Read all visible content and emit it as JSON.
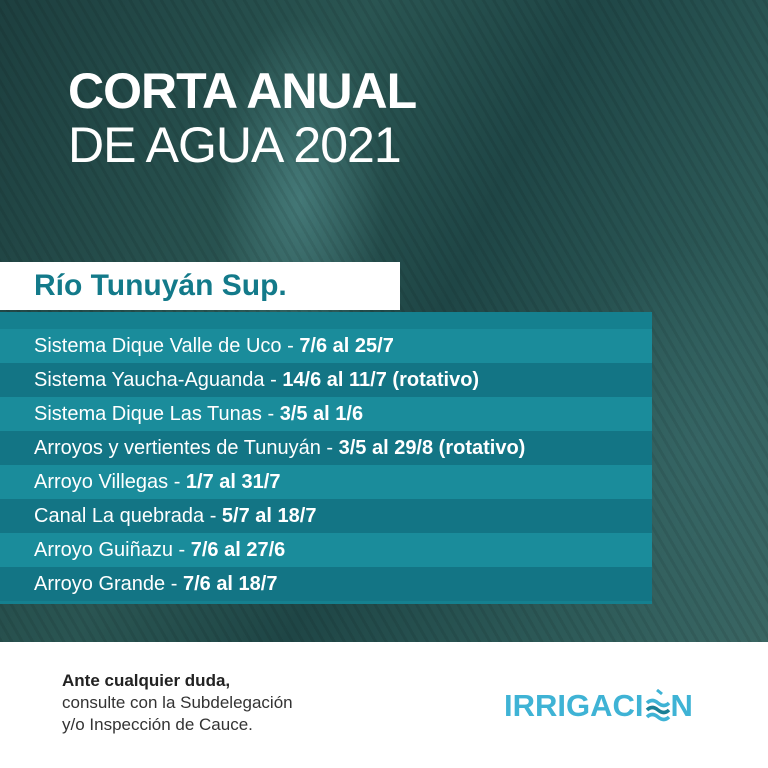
{
  "title": {
    "line1": "CORTA ANUAL",
    "line2": "DE AGUA 2021"
  },
  "subtitle": "Río Tunuyán Sup.",
  "rows": [
    {
      "name": "Sistema Dique Valle de Uco - ",
      "dates": "7/6 al 25/7"
    },
    {
      "name": "Sistema Yaucha-Aguanda - ",
      "dates": "14/6 al 11/7 (rotativo)"
    },
    {
      "name": "Sistema Dique Las Tunas - ",
      "dates": "3/5 al 1/6"
    },
    {
      "name": "Arroyos y vertientes de Tunuyán - ",
      "dates": "3/5 al 29/8 (rotativo)"
    },
    {
      "name": "Arroyo Villegas - ",
      "dates": "1/7 al 31/7"
    },
    {
      "name": "Canal La quebrada - ",
      "dates": "5/7 al 18/7"
    },
    {
      "name": "Arroyo Guiñazu - ",
      "dates": "7/6 al 27/6"
    },
    {
      "name": "Arroyo Grande - ",
      "dates": "7/6 al 18/7"
    }
  ],
  "footer": {
    "note_bold": "Ante cualquier duda,",
    "note_line2": "consulte con la Subdelegación",
    "note_line3": "y/o Inspección de Cauce.",
    "logo_text": "IRRIGACIÓN",
    "logo_text_before": "IRRIGACI",
    "logo_text_after": "N",
    "logo_icon": "water-waves-icon"
  },
  "colors": {
    "teal_light": "#1a8c9b",
    "teal_dark": "#137585",
    "logo": "#3fb3d5"
  }
}
